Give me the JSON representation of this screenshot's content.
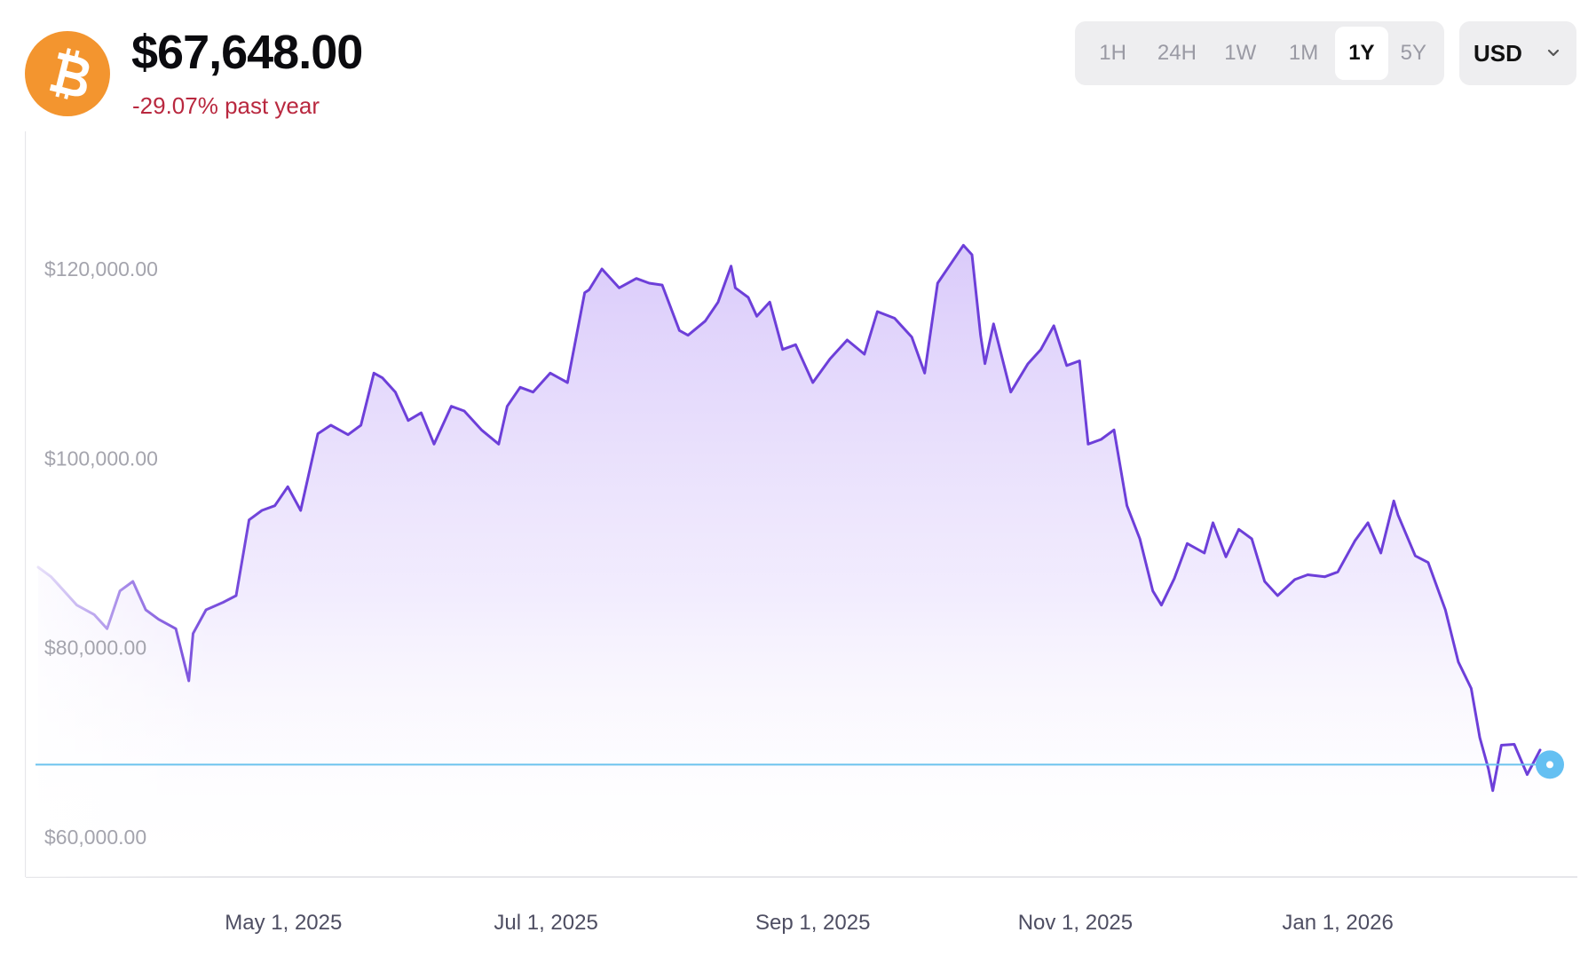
{
  "header": {
    "price": "$67,648.00",
    "change": "-29.07% past year",
    "coin_icon": "bitcoin-icon",
    "coin_color": "#f3952f",
    "change_color": "#b9283f"
  },
  "range_tabs": [
    {
      "label": "1H",
      "active": false
    },
    {
      "label": "24H",
      "active": false
    },
    {
      "label": "1W",
      "active": false
    },
    {
      "label": "1M",
      "active": false
    },
    {
      "label": "1Y",
      "active": true
    },
    {
      "label": "5Y",
      "active": false
    }
  ],
  "currency": {
    "label": "USD",
    "icon": "chevron-down-icon"
  },
  "colors": {
    "line": "#6d3fd9",
    "fill": "#e6dcfb",
    "reference_line": "#6cc3ee",
    "marker": "#64c0f2"
  },
  "chart_data": {
    "type": "area",
    "y_ticks": [
      "$120,000.00",
      "$100,000.00",
      "$80,000.00",
      "$60,000.00"
    ],
    "x_ticks": [
      "May 1, 2025",
      "Jul 1, 2025",
      "Sep 1, 2025",
      "Nov 1, 2025",
      "Jan 1, 2026"
    ],
    "ylim": [
      60000,
      120000
    ],
    "current_value": 67648,
    "series": [
      {
        "x": [
          "2025-03-05",
          "2025-03-08",
          "2025-03-10",
          "2025-03-14",
          "2025-03-18",
          "2025-03-21",
          "2025-03-24",
          "2025-03-27",
          "2025-03-30",
          "2025-04-02",
          "2025-04-06",
          "2025-04-09",
          "2025-04-10",
          "2025-04-13",
          "2025-04-17",
          "2025-04-20",
          "2025-04-23",
          "2025-04-26",
          "2025-04-29",
          "2025-05-02",
          "2025-05-05",
          "2025-05-09",
          "2025-05-12",
          "2025-05-16",
          "2025-05-19",
          "2025-05-22",
          "2025-05-24",
          "2025-05-27",
          "2025-05-30",
          "2025-06-02",
          "2025-06-05",
          "2025-06-09",
          "2025-06-12",
          "2025-06-16",
          "2025-06-20",
          "2025-06-22",
          "2025-06-25",
          "2025-06-28",
          "2025-07-02",
          "2025-07-06",
          "2025-07-10",
          "2025-07-11",
          "2025-07-14",
          "2025-07-18",
          "2025-07-22",
          "2025-07-25",
          "2025-07-28",
          "2025-08-01",
          "2025-08-03",
          "2025-08-07",
          "2025-08-10",
          "2025-08-13",
          "2025-08-14",
          "2025-08-17",
          "2025-08-19",
          "2025-08-22",
          "2025-08-25",
          "2025-08-28",
          "2025-09-01",
          "2025-09-05",
          "2025-09-09",
          "2025-09-13",
          "2025-09-16",
          "2025-09-20",
          "2025-09-24",
          "2025-09-27",
          "2025-09-30",
          "2025-10-03",
          "2025-10-06",
          "2025-10-08",
          "2025-10-10",
          "2025-10-11",
          "2025-10-13",
          "2025-10-17",
          "2025-10-21",
          "2025-10-24",
          "2025-10-27",
          "2025-10-30",
          "2025-11-02",
          "2025-11-04",
          "2025-11-07",
          "2025-11-10",
          "2025-11-13",
          "2025-11-16",
          "2025-11-19",
          "2025-11-21",
          "2025-11-24",
          "2025-11-27",
          "2025-12-01",
          "2025-12-03",
          "2025-12-06",
          "2025-12-09",
          "2025-12-12",
          "2025-12-15",
          "2025-12-18",
          "2025-12-22",
          "2025-12-25",
          "2025-12-29",
          "2026-01-01",
          "2026-01-05",
          "2026-01-08",
          "2026-01-11",
          "2026-01-14",
          "2026-01-15",
          "2026-01-19",
          "2026-01-22",
          "2026-01-26",
          "2026-01-29",
          "2026-02-01",
          "2026-02-03",
          "2026-02-05",
          "2026-02-06",
          "2026-02-08",
          "2026-02-11",
          "2026-02-14",
          "2026-02-17"
        ],
        "values": [
          88500,
          87500,
          86500,
          84500,
          83500,
          82000,
          86000,
          87000,
          84000,
          83000,
          82000,
          76500,
          81500,
          84000,
          84800,
          85500,
          93500,
          94500,
          95000,
          97000,
          94500,
          102600,
          103500,
          102500,
          103500,
          109000,
          108500,
          107000,
          104000,
          104800,
          101500,
          105500,
          105000,
          103000,
          101500,
          105500,
          107500,
          107000,
          109000,
          108000,
          117500,
          117800,
          120000,
          118000,
          119000,
          118500,
          118300,
          113500,
          113000,
          114500,
          116500,
          120300,
          118000,
          117000,
          115000,
          116500,
          111500,
          112000,
          108000,
          110500,
          112500,
          111000,
          115500,
          114800,
          112800,
          109000,
          118500,
          120500,
          122500,
          121500,
          113000,
          110000,
          114200,
          107000,
          110000,
          111500,
          114000,
          109800,
          110300,
          101500,
          102000,
          103000,
          95000,
          91500,
          86000,
          84500,
          87300,
          91000,
          90000,
          93200,
          89600,
          92500,
          91500,
          87000,
          85500,
          87200,
          87700,
          87500,
          88000,
          91300,
          93200,
          90000,
          95500,
          94000,
          89700,
          89000,
          84000,
          78500,
          75700,
          70500,
          67200,
          64900,
          69700,
          69800,
          66600,
          69200
        ]
      }
    ]
  }
}
